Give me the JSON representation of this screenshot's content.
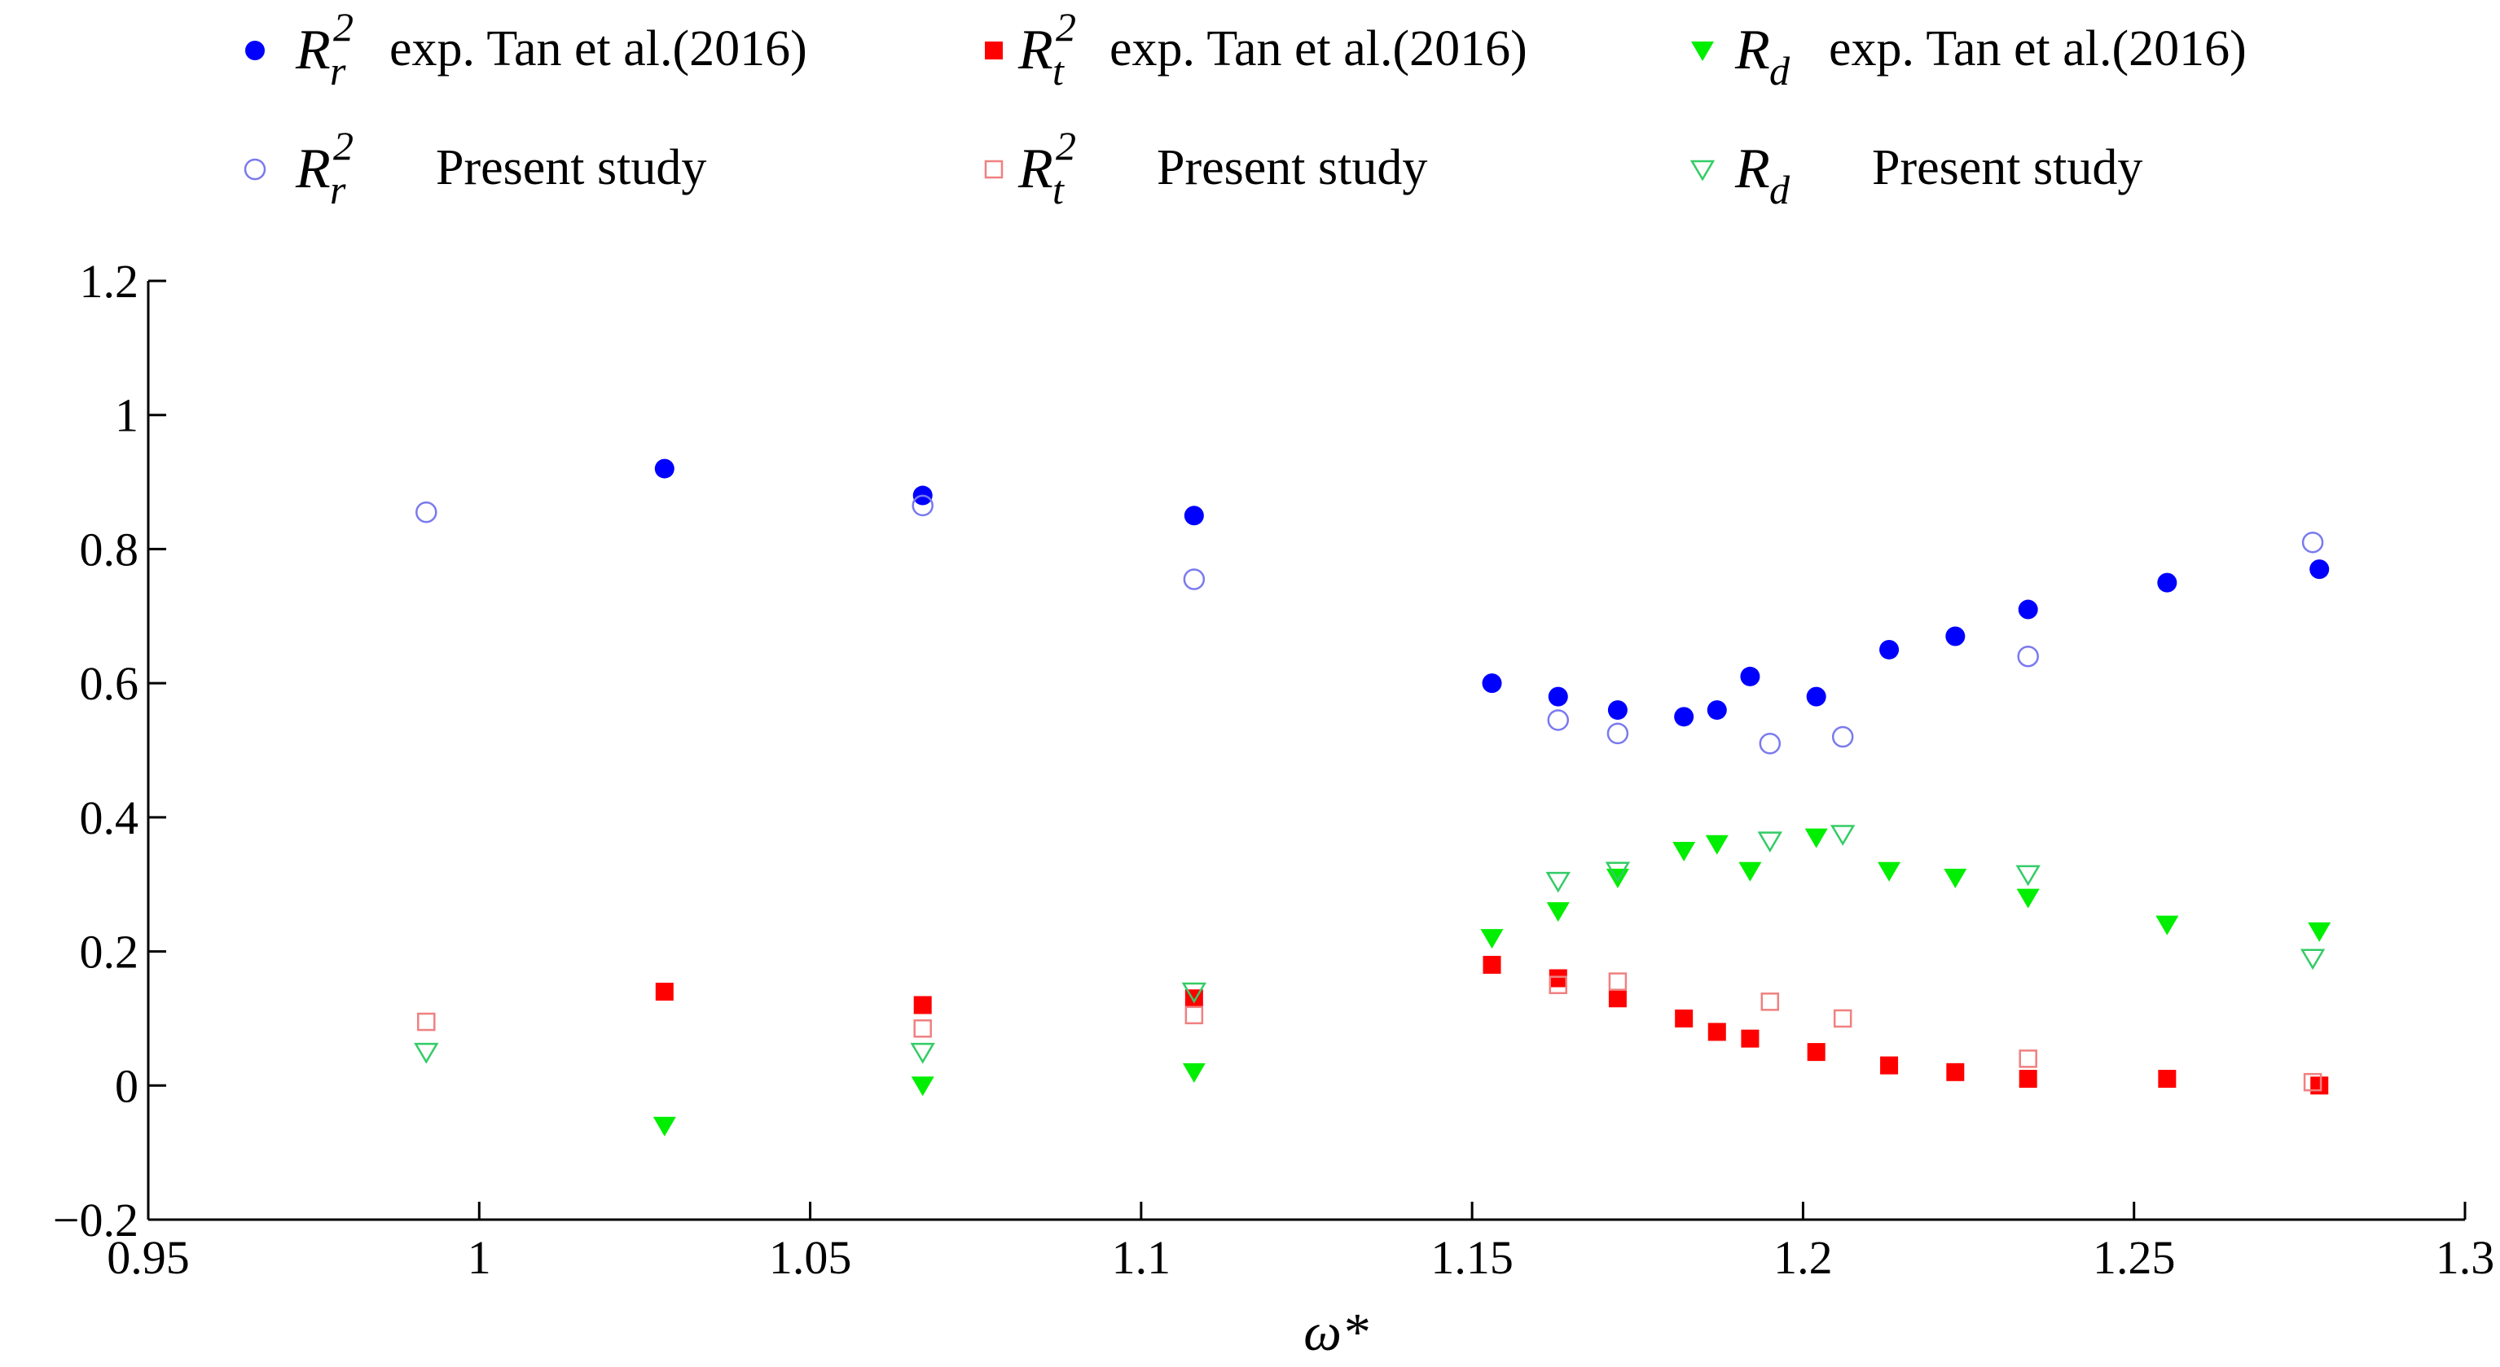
{
  "chart_data": {
    "type": "scatter",
    "title": "",
    "xlabel": "ω*",
    "ylabel": "",
    "xlim": [
      0.95,
      1.3
    ],
    "ylim": [
      -0.2,
      1.2
    ],
    "xticks": [
      "0.95",
      "1",
      "1.05",
      "1.1",
      "1.15",
      "1.2",
      "1.25",
      "1.3"
    ],
    "yticks": [
      "−0.2",
      "0",
      "0.2",
      "0.4",
      "0.6",
      "0.8",
      "1",
      "1.2"
    ],
    "grid": false,
    "legend_position": "top",
    "series": [
      {
        "key": "rr-exp",
        "symbol": "R",
        "sub": "r",
        "sup": "2",
        "label": "exp. Tan et al.(2016)",
        "marker": "filled-circle",
        "color": "#0000ff",
        "points": [
          [
            1.028,
            0.92
          ],
          [
            1.067,
            0.88
          ],
          [
            1.108,
            0.85
          ],
          [
            1.153,
            0.6
          ],
          [
            1.163,
            0.58
          ],
          [
            1.172,
            0.56
          ],
          [
            1.182,
            0.55
          ],
          [
            1.187,
            0.56
          ],
          [
            1.192,
            0.61
          ],
          [
            1.202,
            0.58
          ],
          [
            1.213,
            0.65
          ],
          [
            1.223,
            0.67
          ],
          [
            1.234,
            0.71
          ],
          [
            1.255,
            0.75
          ],
          [
            1.278,
            0.77
          ]
        ]
      },
      {
        "key": "rt-exp",
        "symbol": "R",
        "sub": "t",
        "sup": "2",
        "label": "exp. Tan et al.(2016)",
        "marker": "filled-square",
        "color": "#ff0000",
        "points": [
          [
            1.028,
            0.14
          ],
          [
            1.067,
            0.12
          ],
          [
            1.108,
            0.13
          ],
          [
            1.153,
            0.18
          ],
          [
            1.163,
            0.16
          ],
          [
            1.172,
            0.13
          ],
          [
            1.182,
            0.1
          ],
          [
            1.187,
            0.08
          ],
          [
            1.192,
            0.07
          ],
          [
            1.202,
            0.05
          ],
          [
            1.213,
            0.03
          ],
          [
            1.223,
            0.02
          ],
          [
            1.234,
            0.01
          ],
          [
            1.255,
            0.01
          ],
          [
            1.278,
            0.0
          ]
        ]
      },
      {
        "key": "rd-exp",
        "symbol": "R",
        "sub": "d",
        "sup": "",
        "label": "exp. Tan et al.(2016)",
        "marker": "filled-triangle-down",
        "color": "#00ee00",
        "points": [
          [
            1.028,
            -0.06
          ],
          [
            1.067,
            0.0
          ],
          [
            1.108,
            0.02
          ],
          [
            1.153,
            0.22
          ],
          [
            1.163,
            0.26
          ],
          [
            1.172,
            0.31
          ],
          [
            1.182,
            0.35
          ],
          [
            1.187,
            0.36
          ],
          [
            1.192,
            0.32
          ],
          [
            1.202,
            0.37
          ],
          [
            1.213,
            0.32
          ],
          [
            1.223,
            0.31
          ],
          [
            1.234,
            0.28
          ],
          [
            1.255,
            0.24
          ],
          [
            1.278,
            0.23
          ]
        ]
      },
      {
        "key": "rr-present",
        "symbol": "R",
        "sub": "r",
        "sup": "2",
        "label": "Present study",
        "marker": "open-circle",
        "color": "#7a7aee",
        "points": [
          [
            0.992,
            0.855
          ],
          [
            1.067,
            0.865
          ],
          [
            1.108,
            0.755
          ],
          [
            1.163,
            0.545
          ],
          [
            1.172,
            0.525
          ],
          [
            1.195,
            0.51
          ],
          [
            1.206,
            0.52
          ],
          [
            1.234,
            0.64
          ],
          [
            1.277,
            0.81
          ]
        ]
      },
      {
        "key": "rt-present",
        "symbol": "R",
        "sub": "t",
        "sup": "2",
        "label": "Present study",
        "marker": "open-square",
        "color": "#f08080",
        "points": [
          [
            0.992,
            0.095
          ],
          [
            1.067,
            0.085
          ],
          [
            1.108,
            0.105
          ],
          [
            1.163,
            0.15
          ],
          [
            1.172,
            0.155
          ],
          [
            1.195,
            0.125
          ],
          [
            1.206,
            0.1
          ],
          [
            1.234,
            0.04
          ],
          [
            1.277,
            0.005
          ]
        ]
      },
      {
        "key": "rd-present",
        "symbol": "R",
        "sub": "d",
        "sup": "",
        "label": "Present study",
        "marker": "open-triangle-down",
        "color": "#33cc66",
        "points": [
          [
            0.992,
            0.05
          ],
          [
            1.067,
            0.05
          ],
          [
            1.108,
            0.14
          ],
          [
            1.163,
            0.305
          ],
          [
            1.172,
            0.32
          ],
          [
            1.195,
            0.365
          ],
          [
            1.206,
            0.375
          ],
          [
            1.234,
            0.315
          ],
          [
            1.277,
            0.19
          ]
        ]
      }
    ]
  }
}
